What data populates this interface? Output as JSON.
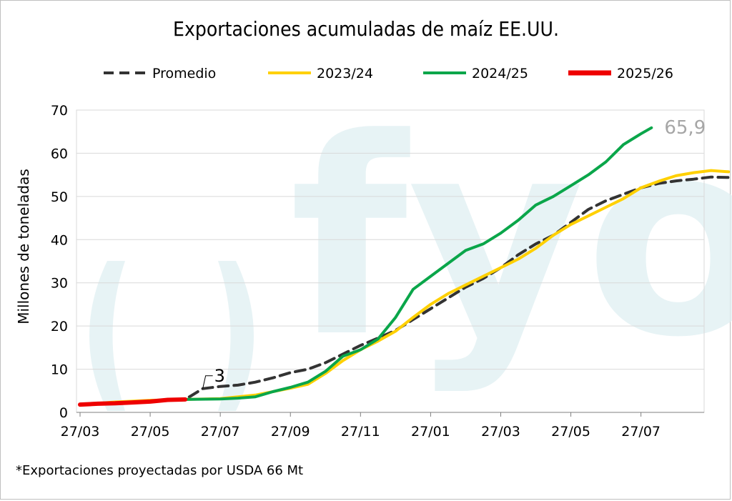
{
  "chart_data": {
    "type": "line",
    "title": "Exportaciones acumuladas de maíz EE.UU.",
    "ylabel": "Millones de toneladas",
    "xlabel": "",
    "x_ticks": [
      "27/03",
      "27/05",
      "27/07",
      "27/09",
      "27/11",
      "27/01",
      "27/03",
      "27/05",
      "27/07"
    ],
    "ylim": [
      0,
      70
    ],
    "y_ticks": [
      0,
      10,
      20,
      30,
      40,
      50,
      60,
      70
    ],
    "grid": "horizontal",
    "legend": "top",
    "series": [
      {
        "name": "Promedio",
        "color": "#333333",
        "style": "dashed",
        "points": [
          [
            0,
            1.8
          ],
          [
            2,
            2.2
          ],
          [
            4,
            2.6
          ],
          [
            6,
            3.0
          ],
          [
            7,
            5.5
          ],
          [
            8,
            6.0
          ],
          [
            9,
            6.3
          ],
          [
            10,
            7.0
          ],
          [
            11,
            8.0
          ],
          [
            12,
            9.2
          ],
          [
            13,
            10.0
          ],
          [
            14,
            11.5
          ],
          [
            15,
            13.5
          ],
          [
            16,
            15.5
          ],
          [
            17,
            17.2
          ],
          [
            18,
            19.0
          ],
          [
            19,
            21.5
          ],
          [
            20,
            24.0
          ],
          [
            21,
            26.5
          ],
          [
            22,
            29.0
          ],
          [
            23,
            31.0
          ],
          [
            24,
            33.5
          ],
          [
            25,
            36.5
          ],
          [
            26,
            39.0
          ],
          [
            27,
            41.0
          ],
          [
            28,
            44.0
          ],
          [
            29,
            47.0
          ],
          [
            30,
            49.0
          ],
          [
            31,
            50.5
          ],
          [
            32,
            52.0
          ],
          [
            33,
            53.0
          ],
          [
            34,
            53.6
          ],
          [
            35,
            54.0
          ],
          [
            36,
            54.5
          ],
          [
            37,
            54.4
          ]
        ]
      },
      {
        "name": "2023/24",
        "color": "#ffd000",
        "style": "solid",
        "points": [
          [
            0,
            1.8
          ],
          [
            2,
            2.4
          ],
          [
            4,
            2.8
          ],
          [
            6,
            3.0
          ],
          [
            8,
            3.2
          ],
          [
            10,
            4.0
          ],
          [
            11,
            4.8
          ],
          [
            12,
            5.6
          ],
          [
            13,
            6.5
          ],
          [
            14,
            9.0
          ],
          [
            15,
            12.0
          ],
          [
            16,
            14.5
          ],
          [
            17,
            16.5
          ],
          [
            18,
            18.8
          ],
          [
            19,
            22.0
          ],
          [
            20,
            25.0
          ],
          [
            21,
            27.5
          ],
          [
            22,
            29.5
          ],
          [
            23,
            31.5
          ],
          [
            24,
            33.5
          ],
          [
            25,
            35.5
          ],
          [
            26,
            38.0
          ],
          [
            27,
            41.0
          ],
          [
            28,
            43.5
          ],
          [
            29,
            45.5
          ],
          [
            30,
            47.5
          ],
          [
            31,
            49.5
          ],
          [
            32,
            52.0
          ],
          [
            33,
            53.5
          ],
          [
            34,
            54.8
          ],
          [
            35,
            55.5
          ],
          [
            36,
            56.0
          ],
          [
            37,
            55.7
          ]
        ]
      },
      {
        "name": "2024/25",
        "color": "#0aa64a",
        "style": "solid",
        "points": [
          [
            0,
            1.8
          ],
          [
            2,
            2.2
          ],
          [
            4,
            2.6
          ],
          [
            6,
            3.0
          ],
          [
            8,
            3.1
          ],
          [
            9,
            3.3
          ],
          [
            10,
            3.6
          ],
          [
            11,
            4.8
          ],
          [
            12,
            5.8
          ],
          [
            13,
            7.0
          ],
          [
            14,
            9.5
          ],
          [
            15,
            13.0
          ],
          [
            16,
            14.5
          ],
          [
            17,
            17.0
          ],
          [
            18,
            22.0
          ],
          [
            19,
            28.5
          ],
          [
            20,
            31.5
          ],
          [
            21,
            34.5
          ],
          [
            22,
            37.5
          ],
          [
            23,
            39.0
          ],
          [
            24,
            41.5
          ],
          [
            25,
            44.5
          ],
          [
            26,
            48.0
          ],
          [
            27,
            50.0
          ],
          [
            28,
            52.5
          ],
          [
            29,
            55.0
          ],
          [
            30,
            58.0
          ],
          [
            31,
            62.0
          ],
          [
            32,
            64.5
          ],
          [
            32.6,
            65.9
          ]
        ]
      },
      {
        "name": "2025/26",
        "color": "#ee0000",
        "style": "solid",
        "points": [
          [
            0,
            1.8
          ],
          [
            1,
            2.0
          ],
          [
            2,
            2.1
          ],
          [
            3,
            2.3
          ],
          [
            4,
            2.5
          ],
          [
            5,
            2.9
          ],
          [
            6,
            3.0
          ]
        ]
      }
    ],
    "annotations": [
      {
        "text": "65,9",
        "series": "2024/25",
        "color": "#a6a6a6"
      },
      {
        "text": "3",
        "series": "Promedio",
        "color": "#000000"
      }
    ]
  },
  "watermark": "fyo",
  "footnote": "*Exportaciones proyectadas por USDA 66 Mt"
}
